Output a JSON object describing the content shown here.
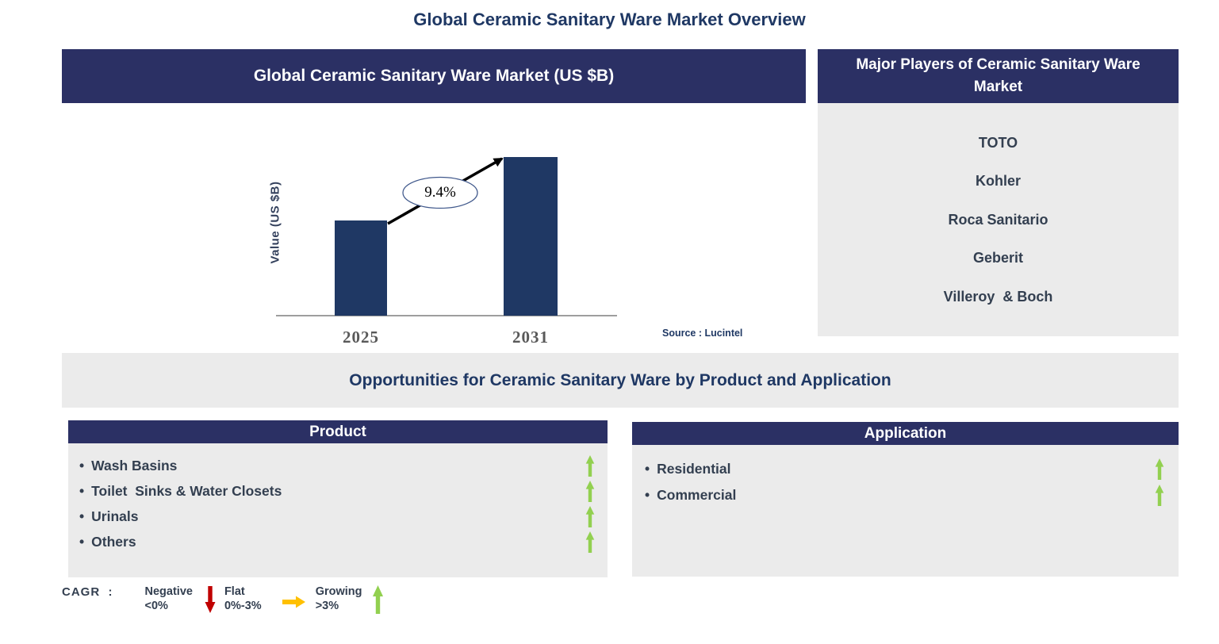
{
  "page_title": "Global Ceramic Sanitary Ware Market Overview",
  "ui": {
    "bullet": "•"
  },
  "colors": {
    "header_navy": "#2B3064",
    "title_navy": "#1F3864",
    "bar_navy": "#1F3864",
    "panel_gray": "#EBEBEB",
    "item_text": "#333F50",
    "green": "#92D050",
    "red": "#C00000",
    "amber": "#FFC000",
    "axis_gray": "#7F7F7F",
    "year_gray": "#595959"
  },
  "market_chart": {
    "header": "Global Ceramic Sanitary Ware Market (US $B)"
  },
  "chart_data": {
    "type": "bar",
    "title": "Global Ceramic Sanitary Ware Market (US $B)",
    "categories": [
      "2025",
      "2031"
    ],
    "values_relative": [
      60,
      100
    ],
    "ylabel": "Value (US $B)",
    "xlabel": "",
    "cagr_label": "9.4%",
    "annotation": "CAGR growth arrow from 2025 bar to 2031 bar labeled 9.4%",
    "source": "Source : Lucintel",
    "grid": false,
    "legend": false
  },
  "players": {
    "header": "Major Players of Ceramic Sanitary Ware Market",
    "companies": [
      "TOTO",
      "Kohler",
      "Roca Sanitario",
      "Geberit",
      "Villeroy  & Boch"
    ]
  },
  "opportunities": {
    "title": "Opportunities for Ceramic Sanitary Ware by Product and Application"
  },
  "product": {
    "header": "Product",
    "items": [
      "Wash Basins",
      "Toilet  Sinks & Water Closets",
      "Urinals",
      "Others"
    ]
  },
  "application": {
    "header": "Application",
    "items": [
      "Residential",
      "Commercial"
    ]
  },
  "cagr_legend": {
    "label": "CAGR  :",
    "entries": [
      {
        "name": "Negative",
        "range": "<0%",
        "trend": "down",
        "color": "#C00000"
      },
      {
        "name": "Flat",
        "range": "0%-3%",
        "trend": "right",
        "color": "#FFC000"
      },
      {
        "name": "Growing",
        "range": ">3%",
        "trend": "up",
        "color": "#92D050"
      }
    ]
  }
}
